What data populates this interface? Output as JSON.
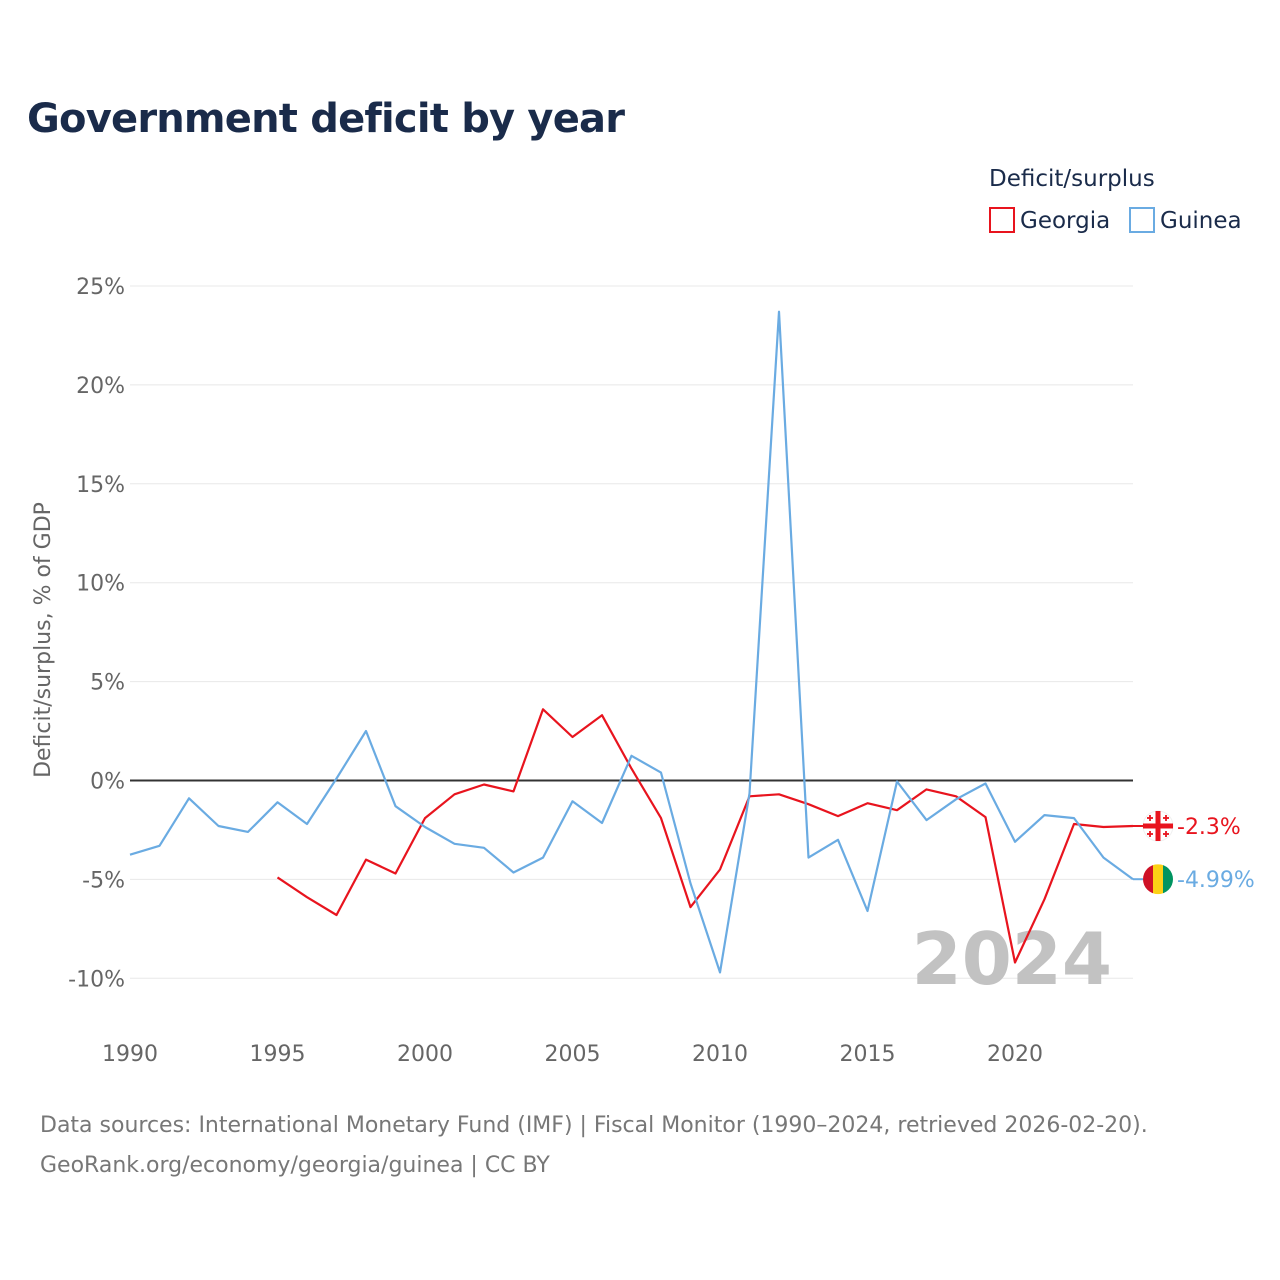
{
  "chart_data": {
    "type": "line",
    "title": "Government deficit by year",
    "xlabel": "",
    "ylabel": "Deficit/surplus, % of GDP",
    "xlim": [
      1990,
      2024
    ],
    "ylim": [
      -12,
      26
    ],
    "x_ticks": [
      1990,
      1995,
      2000,
      2005,
      2010,
      2015,
      2020
    ],
    "x_tick_labels": [
      "1990",
      "1995",
      "2000",
      "2005",
      "2010",
      "2015",
      "2020"
    ],
    "y_ticks": [
      25,
      20,
      15,
      10,
      5,
      0,
      -5,
      -10
    ],
    "y_tick_labels": [
      "25%",
      "20%",
      "15%",
      "10%",
      "5%",
      "0%",
      "-5%",
      "-10%"
    ],
    "legend_title": "Deficit/surplus",
    "legend_position": "top-right",
    "highlight_year": "2024",
    "series": [
      {
        "name": "Georgia",
        "color": "#e8141e",
        "end_label": "-2.3%",
        "flag_icon": "georgia-flag-icon",
        "x": [
          1995,
          1996,
          1997,
          1998,
          1999,
          2000,
          2001,
          2002,
          2003,
          2004,
          2005,
          2006,
          2007,
          2008,
          2009,
          2010,
          2011,
          2012,
          2013,
          2014,
          2015,
          2016,
          2017,
          2018,
          2019,
          2020,
          2021,
          2022,
          2023,
          2024
        ],
        "values": [
          -4.9,
          -5.9,
          -6.8,
          -4.0,
          -4.7,
          -1.9,
          -0.7,
          -0.2,
          -0.55,
          3.6,
          2.2,
          3.3,
          0.6,
          -1.9,
          -6.4,
          -4.5,
          -0.8,
          -0.7,
          -1.2,
          -1.8,
          -1.15,
          -1.5,
          -0.45,
          -0.8,
          -1.85,
          -9.2,
          -6.0,
          -2.2,
          -2.35,
          -2.3
        ]
      },
      {
        "name": "Guinea",
        "color": "#6aabe2",
        "end_label": "-4.99%",
        "flag_icon": "guinea-flag-icon",
        "x": [
          1990,
          1991,
          1992,
          1993,
          1994,
          1995,
          1996,
          1997,
          1998,
          1999,
          2000,
          2001,
          2002,
          2003,
          2004,
          2005,
          2006,
          2007,
          2008,
          2009,
          2010,
          2011,
          2012,
          2013,
          2014,
          2015,
          2016,
          2017,
          2018,
          2019,
          2020,
          2021,
          2022,
          2023,
          2024
        ],
        "values": [
          -3.75,
          -3.3,
          -0.9,
          -2.3,
          -2.6,
          -1.1,
          -2.2,
          0.1,
          2.5,
          -1.3,
          -2.35,
          -3.2,
          -3.4,
          -4.65,
          -3.9,
          -1.05,
          -2.15,
          1.25,
          0.4,
          -5.2,
          -9.7,
          -0.65,
          23.7,
          -3.9,
          -3.0,
          -6.6,
          -0.05,
          -2.0,
          -0.95,
          -0.15,
          -3.1,
          -1.75,
          -1.9,
          -3.9,
          -4.99
        ]
      }
    ]
  },
  "footer": {
    "source_line": "Data sources: International Monetary Fund (IMF) | Fiscal Monitor (1990–2024, retrieved 2026-02-20).",
    "credit_line": "GeoRank.org/economy/georgia/guinea | CC BY"
  }
}
